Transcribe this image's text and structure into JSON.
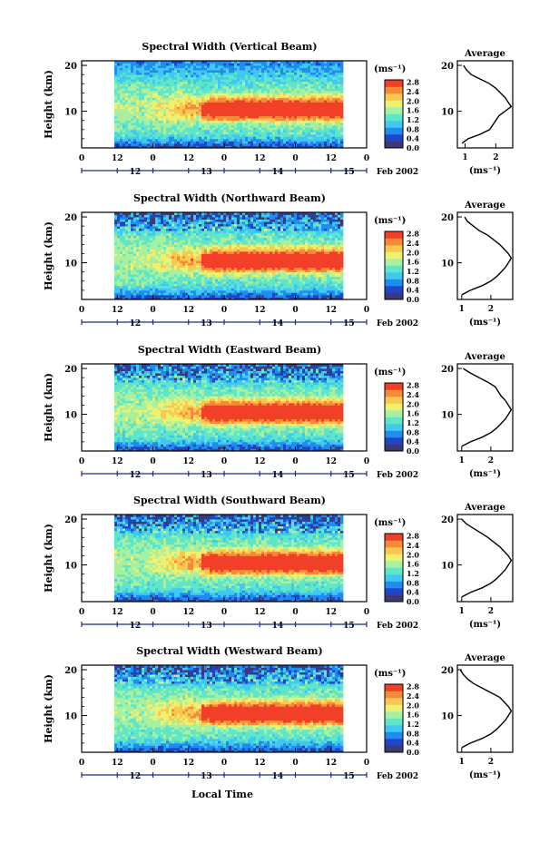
{
  "x_axis_title": "Local Time",
  "date_label": "Feb 2002",
  "unit_label": "(ms⁻¹)",
  "height_label": "Height (km)",
  "average_title": "Average",
  "colorbar_ticks": [
    "0.0",
    "0.4",
    "0.8",
    "1.2",
    "1.6",
    "2.0",
    "2.4",
    "2.8"
  ],
  "colorscale": [
    "#3a3a78",
    "#2046c8",
    "#1f8cf0",
    "#41c8f0",
    "#5fe6c8",
    "#a6f0a0",
    "#eef070",
    "#f8c850",
    "#f68a38",
    "#f24028"
  ],
  "chart_data": [
    {
      "type": "heatmap",
      "title": "Spectral Width (Vertical Beam)",
      "ylabel": "Height (km)",
      "xlabel": "Local Time",
      "y_ticks": [
        "20",
        "10"
      ],
      "ylim": [
        2,
        21
      ],
      "x_hour_ticks": [
        "0",
        "12",
        "0",
        "12",
        "0",
        "12",
        "0",
        "12",
        "0"
      ],
      "x_day_ticks": [
        "12",
        "13",
        "14",
        "15"
      ],
      "data_time_range_hours": [
        12,
        84
      ],
      "colorbar": {
        "label": "(ms⁻¹)",
        "range": [
          0.0,
          2.9
        ],
        "ticks": [
          "0.0",
          "0.4",
          "0.8",
          "1.2",
          "1.6",
          "2.0",
          "2.4",
          "2.8"
        ]
      },
      "profile": {
        "title": "Average",
        "xlabel": "(ms⁻¹)",
        "x_ticks": [
          "1",
          "2"
        ],
        "xlim": [
          0.75,
          2.55
        ],
        "y_ticks": [
          "20",
          "10"
        ],
        "height_km": [
          3,
          4,
          5,
          6,
          7,
          8,
          9,
          10,
          11,
          12,
          13,
          14,
          15,
          16,
          17,
          18,
          19,
          20
        ],
        "value_ms": [
          0.9,
          1.1,
          1.5,
          1.8,
          1.9,
          2.0,
          2.1,
          2.3,
          2.5,
          2.4,
          2.3,
          2.15,
          2.0,
          1.8,
          1.5,
          1.2,
          1.05,
          0.95
        ]
      }
    },
    {
      "type": "heatmap",
      "title": "Spectral Width (Northward Beam)",
      "ylabel": "Height (km)",
      "xlabel": "Local Time",
      "y_ticks": [
        "20",
        "10"
      ],
      "ylim": [
        2,
        21
      ],
      "x_hour_ticks": [
        "0",
        "12",
        "0",
        "12",
        "0",
        "12",
        "0",
        "12",
        "0"
      ],
      "x_day_ticks": [
        "12",
        "13",
        "14",
        "15"
      ],
      "data_time_range_hours": [
        12,
        84
      ],
      "colorbar": {
        "label": "(ms⁻¹)",
        "range": [
          0.0,
          2.9
        ],
        "ticks": [
          "0.0",
          "0.4",
          "0.8",
          "1.2",
          "1.6",
          "2.0",
          "2.4",
          "2.8"
        ]
      },
      "profile": {
        "title": "Average",
        "xlabel": "(ms⁻¹)",
        "x_ticks": [
          "1",
          "2"
        ],
        "xlim": [
          0.85,
          2.75
        ],
        "y_ticks": [
          "20",
          "10"
        ],
        "height_km": [
          3,
          4,
          5,
          6,
          7,
          8,
          9,
          10,
          11,
          12,
          13,
          14,
          15,
          16,
          17,
          18,
          19,
          20
        ],
        "value_ms": [
          1.0,
          1.3,
          1.7,
          2.0,
          2.2,
          2.35,
          2.5,
          2.6,
          2.7,
          2.6,
          2.45,
          2.3,
          2.1,
          1.9,
          1.6,
          1.4,
          1.2,
          1.1
        ]
      }
    },
    {
      "type": "heatmap",
      "title": "Spectral Width (Eastward Beam)",
      "ylabel": "Height (km)",
      "xlabel": "Local Time",
      "y_ticks": [
        "20",
        "10"
      ],
      "ylim": [
        2,
        21
      ],
      "x_hour_ticks": [
        "0",
        "12",
        "0",
        "12",
        "0",
        "12",
        "0",
        "12",
        "0"
      ],
      "x_day_ticks": [
        "12",
        "13",
        "14",
        "15"
      ],
      "data_time_range_hours": [
        12,
        84
      ],
      "colorbar": {
        "label": "(ms⁻¹)",
        "range": [
          0.0,
          2.9
        ],
        "ticks": [
          "0.0",
          "0.4",
          "0.8",
          "1.2",
          "1.6",
          "2.0",
          "2.4",
          "2.8"
        ]
      },
      "profile": {
        "title": "Average",
        "xlabel": "(ms⁻¹)",
        "x_ticks": [
          "1",
          "2"
        ],
        "xlim": [
          0.85,
          2.75
        ],
        "y_ticks": [
          "20",
          "10"
        ],
        "height_km": [
          3,
          4,
          5,
          6,
          7,
          8,
          9,
          10,
          11,
          12,
          13,
          14,
          15,
          16,
          17,
          18,
          19,
          20
        ],
        "value_ms": [
          1.0,
          1.3,
          1.7,
          2.0,
          2.2,
          2.35,
          2.5,
          2.6,
          2.7,
          2.6,
          2.5,
          2.35,
          2.25,
          2.15,
          1.9,
          1.6,
          1.3,
          1.05
        ]
      }
    },
    {
      "type": "heatmap",
      "title": "Spectral Width (Southward Beam)",
      "ylabel": "Height (km)",
      "xlabel": "Local Time",
      "y_ticks": [
        "20",
        "10"
      ],
      "ylim": [
        2,
        21
      ],
      "x_hour_ticks": [
        "0",
        "12",
        "0",
        "12",
        "0",
        "12",
        "0",
        "12",
        "0"
      ],
      "x_day_ticks": [
        "12",
        "13",
        "14",
        "15"
      ],
      "data_time_range_hours": [
        12,
        84
      ],
      "colorbar": {
        "label": "(ms⁻¹)",
        "range": [
          0.0,
          2.9
        ],
        "ticks": [
          "0.0",
          "0.4",
          "0.8",
          "1.2",
          "1.6",
          "2.0",
          "2.4",
          "2.8"
        ]
      },
      "profile": {
        "title": "Average",
        "xlabel": "(ms⁻¹)",
        "x_ticks": [
          "1",
          "2"
        ],
        "xlim": [
          0.85,
          2.75
        ],
        "y_ticks": [
          "20",
          "10"
        ],
        "height_km": [
          3,
          4,
          5,
          6,
          7,
          8,
          9,
          10,
          11,
          12,
          13,
          14,
          15,
          16,
          17,
          18,
          19,
          20
        ],
        "value_ms": [
          1.0,
          1.3,
          1.7,
          2.0,
          2.2,
          2.35,
          2.5,
          2.6,
          2.7,
          2.6,
          2.45,
          2.3,
          2.1,
          1.9,
          1.65,
          1.4,
          1.15,
          1.0
        ]
      }
    },
    {
      "type": "heatmap",
      "title": "Spectral Width (Westward Beam)",
      "ylabel": "Height (km)",
      "xlabel": "Local Time",
      "y_ticks": [
        "20",
        "10"
      ],
      "ylim": [
        2,
        21
      ],
      "x_hour_ticks": [
        "0",
        "12",
        "0",
        "12",
        "0",
        "12",
        "0",
        "12",
        "0"
      ],
      "x_day_ticks": [
        "12",
        "13",
        "14",
        "15"
      ],
      "data_time_range_hours": [
        12,
        84
      ],
      "colorbar": {
        "label": "(ms⁻¹)",
        "range": [
          0.0,
          2.9
        ],
        "ticks": [
          "0.0",
          "0.4",
          "0.8",
          "1.2",
          "1.6",
          "2.0",
          "2.4",
          "2.8"
        ]
      },
      "profile": {
        "title": "Average",
        "xlabel": "(ms⁻¹)",
        "x_ticks": [
          "1",
          "2"
        ],
        "xlim": [
          0.85,
          2.75
        ],
        "y_ticks": [
          "20",
          "10"
        ],
        "height_km": [
          3,
          4,
          5,
          6,
          7,
          8,
          9,
          10,
          11,
          12,
          13,
          14,
          15,
          16,
          17,
          18,
          19,
          20
        ],
        "value_ms": [
          1.0,
          1.3,
          1.7,
          2.0,
          2.2,
          2.35,
          2.5,
          2.6,
          2.7,
          2.6,
          2.45,
          2.3,
          2.0,
          1.7,
          1.4,
          1.2,
          1.05,
          0.95
        ]
      }
    }
  ]
}
